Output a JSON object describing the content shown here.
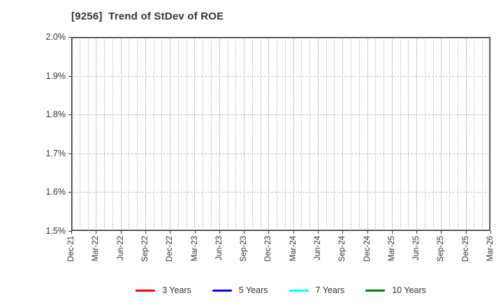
{
  "page": {
    "title": "[9256]  Trend of StDev of ROE"
  },
  "chart_data": {
    "type": "line",
    "title": "[9256]  Trend of StDev of ROE",
    "x_tick_labels": [
      "Dec-21",
      "Mar-22",
      "Jun-22",
      "Sep-22",
      "Dec-22",
      "Mar-23",
      "Jun-23",
      "Sep-23",
      "Dec-23",
      "Mar-24",
      "Jun-24",
      "Sep-24",
      "Dec-24",
      "Mar-25",
      "Jun-25",
      "Sep-25",
      "Dec-25",
      "Mar-26"
    ],
    "x_major_tick_interval_months": 3,
    "x_minor_gridline_interval_months": 1,
    "y_tick_labels": [
      "2.0%",
      "1.9%",
      "1.8%",
      "1.7%",
      "1.6%",
      "1.5%"
    ],
    "ylim": [
      1.5,
      2.0
    ],
    "xlabel": "",
    "ylabel": "",
    "grid": true,
    "legend_position": "bottom",
    "series": [
      {
        "name": "3 Years",
        "color": "#ff0000",
        "values": []
      },
      {
        "name": "5 Years",
        "color": "#0000ff",
        "values": []
      },
      {
        "name": "7 Years",
        "color": "#00ffff",
        "values": []
      },
      {
        "name": "10 Years",
        "color": "#008000",
        "values": []
      }
    ]
  },
  "colors": {
    "background": "#ffffff",
    "axis_border": "#333333",
    "axis_text": "#333333",
    "grid_horizontal": "#bfbfbf",
    "grid_vertical": "#b5b5b5"
  }
}
